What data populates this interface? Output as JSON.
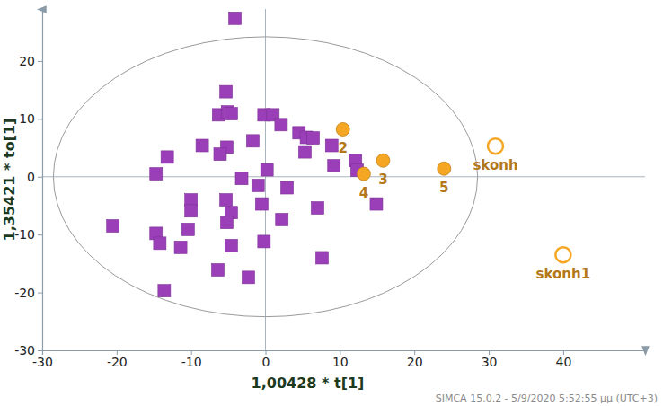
{
  "chart_data": {
    "type": "scatter",
    "x_label": "1,00428 * t[1]",
    "y_label": "1,35421 * to[1]",
    "footer": "SIMCA 15.0.2 - 5/9/2020 5:52:55 μμ (UTC+3)",
    "xlim": [
      -30,
      51
    ],
    "ylim": [
      -30,
      29
    ],
    "xticks": [
      -30,
      -20,
      -10,
      0,
      10,
      20,
      30,
      40
    ],
    "yticks": [
      -30,
      -20,
      -10,
      0,
      10,
      20
    ],
    "grid": false,
    "reference_lines": {
      "x": [
        0
      ],
      "y": [
        0
      ]
    },
    "ellipse": {
      "cx": 0,
      "cy": 0,
      "rx": 28.5,
      "ry": 24.2
    },
    "series": [
      {
        "color": "#9b3fb9",
        "marker": "square",
        "x": [
          -4.1,
          -5.3,
          -6.3,
          -5.1,
          -4.6,
          -0.2,
          1.0,
          2.1,
          -8.5,
          -1.7,
          -5.2,
          -6.1,
          -13.2,
          -14.7,
          -3.2,
          0.2,
          -1.0,
          4.5,
          5.5,
          6.4,
          5.3,
          8.9,
          9.2,
          12.1,
          12.3,
          14.9,
          2.9,
          -0.5,
          -10.0,
          -5.3,
          -4.6,
          -20.5,
          -14.7,
          -14.2,
          -10.4,
          -11.4,
          -5.2,
          -4.6,
          2.2,
          7.0,
          -0.2,
          -6.4,
          -2.3,
          -13.6,
          7.6,
          -10.0
        ],
        "values": [
          27.4,
          14.7,
          10.7,
          11.2,
          10.9,
          10.7,
          10.7,
          9.0,
          5.4,
          6.2,
          5.1,
          3.9,
          3.4,
          0.5,
          -0.3,
          1.2,
          -1.5,
          7.6,
          6.8,
          6.7,
          4.3,
          5.4,
          1.9,
          2.8,
          1.1,
          -4.7,
          -1.9,
          -4.7,
          -4.0,
          -4.0,
          -6.2,
          -8.5,
          -9.8,
          -11.5,
          -9.1,
          -12.2,
          -7.9,
          -11.9,
          -7.4,
          -5.4,
          -11.2,
          -16.1,
          -17.4,
          -19.7,
          -14.0,
          -5.9
        ]
      },
      {
        "color": "#f5a623",
        "marker": "circle",
        "x": [
          10.4,
          15.8,
          13.2,
          24.0
        ],
        "values": [
          8.2,
          2.8,
          0.5,
          1.4
        ],
        "point_labels": [
          "2",
          "3",
          "4",
          "5"
        ]
      },
      {
        "color": "#f5a623",
        "marker": "circle-open",
        "x": [
          30.9,
          40.0
        ],
        "values": [
          5.3,
          -13.5
        ],
        "point_labels": [
          "skonh",
          "skonh1"
        ]
      }
    ]
  }
}
